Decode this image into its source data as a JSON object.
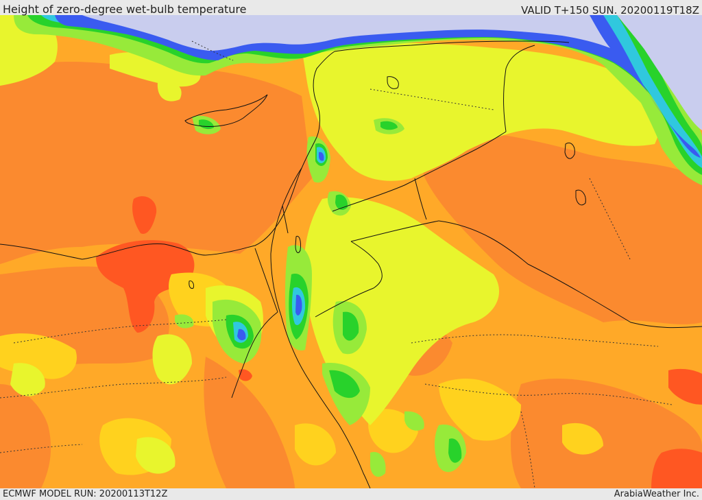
{
  "header": {
    "title": "Height of zero-degree wet-bulb temperature",
    "valid_time": "VALID T+150 SUN. 20200119T18Z"
  },
  "footer": {
    "model_run": "ECMWF MODEL RUN: 20200113T12Z",
    "credit": "ArabiaWeather Inc."
  },
  "colors": {
    "light_orange": "#ffa928",
    "orange": "#fb8a2f",
    "red_orange": "#ff5722",
    "yellow": "#ffd21e",
    "yellow_green": "#e8f52d",
    "light_green": "#97ea3a",
    "green": "#28d22b",
    "cyan": "#30c8de",
    "blue": "#3a5bf0",
    "pale_lavender": "#c9cdee",
    "boundary": "#111111"
  }
}
